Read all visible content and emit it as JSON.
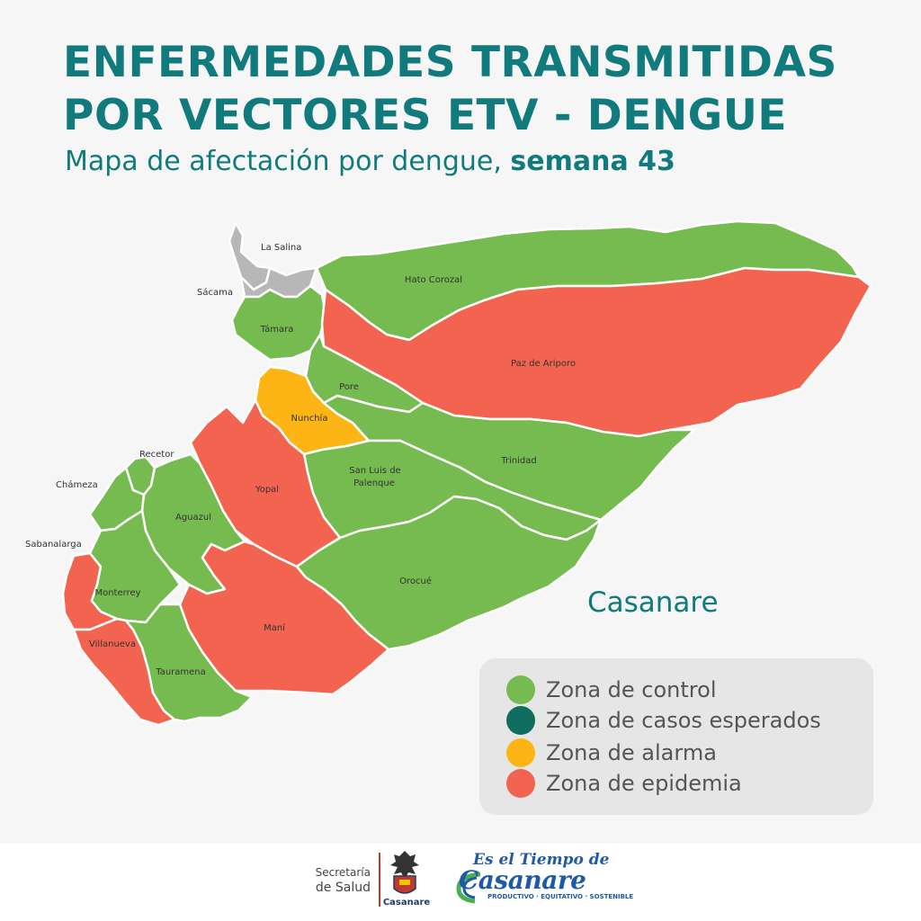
{
  "title_lines": [
    "ENFERMEDADES TRANSMITIDAS",
    "POR VECTORES ETV - DENGUE"
  ],
  "subtitle": {
    "text": "Mapa de afectación por dengue, ",
    "bold": "semana 43"
  },
  "department": "Casanare",
  "colors": {
    "control": "#76bb4f",
    "esperados": "#0f6e5f",
    "alarma": "#fcb515",
    "epidemia": "#f26450",
    "sin_dato": "#b7b7b7",
    "title": "#117a7d"
  },
  "municipalities": [
    {
      "name": "La Salina",
      "zone": "sin_dato"
    },
    {
      "name": "Sácama",
      "zone": "sin_dato"
    },
    {
      "name": "Hato Corozal",
      "zone": "control"
    },
    {
      "name": "Támara",
      "zone": "control"
    },
    {
      "name": "Paz de Ariporo",
      "zone": "epidemia"
    },
    {
      "name": "Pore",
      "zone": "control"
    },
    {
      "name": "Nunchía",
      "zone": "alarma"
    },
    {
      "name": "Trinidad",
      "zone": "control"
    },
    {
      "name": "San Luis de",
      "zone": "control"
    },
    {
      "name": "Palenque",
      "zone": "control"
    },
    {
      "name": "Recetor",
      "zone": "control"
    },
    {
      "name": "Yopal",
      "zone": "epidemia"
    },
    {
      "name": "Chámeza",
      "zone": "control"
    },
    {
      "name": "Aguazul",
      "zone": "control"
    },
    {
      "name": "Sabanalarga",
      "zone": "epidemia"
    },
    {
      "name": "Orocué",
      "zone": "control"
    },
    {
      "name": "Monterrey",
      "zone": "control"
    },
    {
      "name": "Maní",
      "zone": "epidemia"
    },
    {
      "name": "Villanueva",
      "zone": "epidemia"
    },
    {
      "name": "Tauramena",
      "zone": "control"
    }
  ],
  "legend": [
    {
      "label": "Zona de control",
      "color": "#76bb4f"
    },
    {
      "label": "Zona de casos esperados",
      "color": "#0f6e5f"
    },
    {
      "label": "Zona de alarma",
      "color": "#fcb515"
    },
    {
      "label": "Zona de epidemia",
      "color": "#f26450"
    }
  ],
  "footer": {
    "secretaria": [
      "Secretaría",
      "de Salud"
    ],
    "gov": "Casanare",
    "slogan": {
      "line1": "Es el Tiempo de",
      "line2": "Casanare",
      "line3": "PRODUCTIVO · EQUITATIVO · SOSTENIBLE"
    }
  }
}
